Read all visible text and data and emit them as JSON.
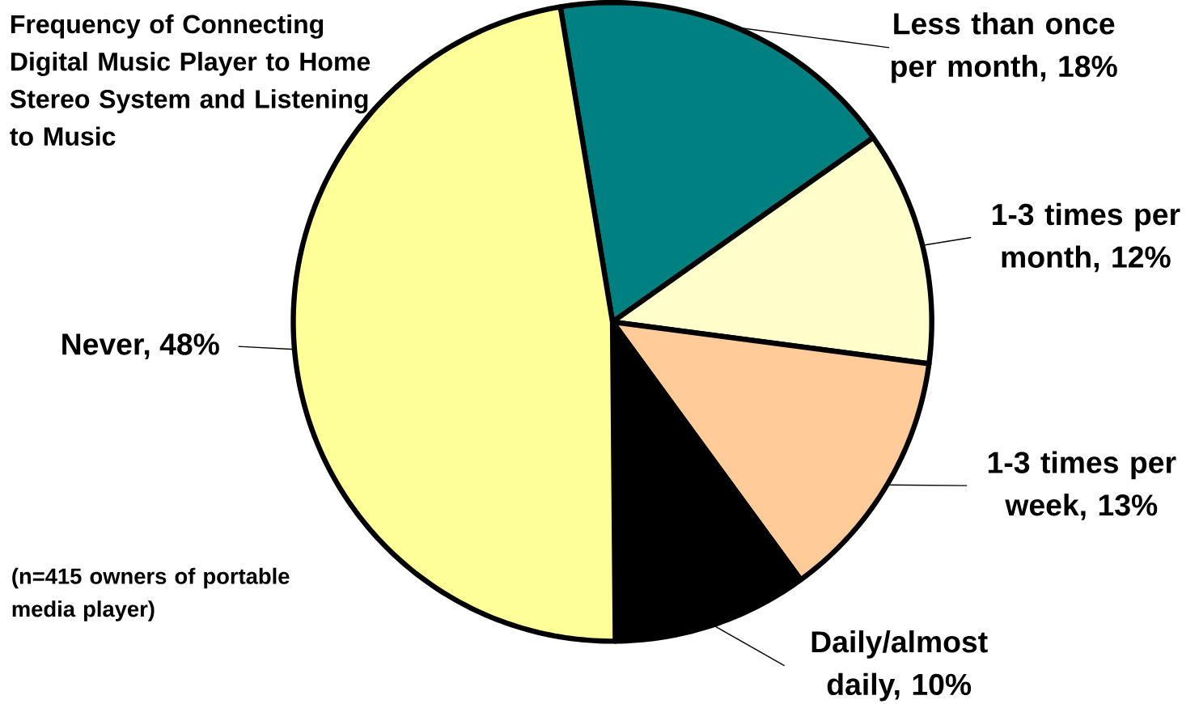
{
  "chart_data": {
    "type": "pie",
    "title": "Frequency of Connecting Digital Music Player to Home Stereo System and Listening to Music",
    "categories": [
      "Less than once per month, 18%",
      "1-3 times per month, 12%",
      "1-3 times per week, 13%",
      "Daily/almost daily, 10%",
      "Never, 48%"
    ],
    "values": [
      18,
      12,
      13,
      10,
      48
    ],
    "colors": [
      "#008080",
      "#ffffcc",
      "#ffcc99",
      "#000000",
      "#ffff99"
    ],
    "annotations": [
      "(n=415 owners of portable media player)"
    ]
  }
}
